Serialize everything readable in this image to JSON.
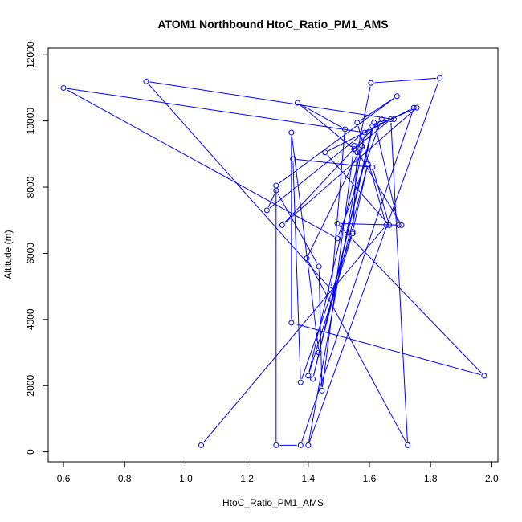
{
  "chart_data": {
    "type": "line",
    "title": "ATOM1 Northbound HtoC_Ratio_PM1_AMS",
    "xlabel": "HtoC_Ratio_PM1_AMS",
    "ylabel": "Altitude (m)",
    "xlim": [
      0.55,
      2.02
    ],
    "ylim": [
      -300,
      12200
    ],
    "x_ticks": [
      0.6,
      0.8,
      1.0,
      1.2,
      1.4,
      1.6,
      1.8,
      2.0
    ],
    "x_tick_labels": [
      "0.6",
      "0.8",
      "1.0",
      "1.2",
      "1.4",
      "1.6",
      "1.8",
      "2.0"
    ],
    "y_ticks": [
      0,
      2000,
      4000,
      6000,
      8000,
      10000,
      12000
    ],
    "y_tick_labels": [
      "0",
      "2000",
      "4000",
      "6000",
      "8000",
      "10000",
      "12000"
    ],
    "grid": false,
    "markers": "open-circle",
    "colors": {
      "series": "#0000ff",
      "axes": "#000000"
    },
    "series": [
      {
        "x": [
          1.05,
          1.655,
          1.56,
          1.69,
          1.295,
          1.295,
          1.375,
          1.745,
          1.455,
          1.665,
          1.61,
          1.35,
          1.375,
          1.545,
          1.595,
          1.435,
          1.345,
          1.345,
          1.975,
          1.495,
          1.705,
          1.55,
          1.445,
          1.435,
          1.295,
          1.265,
          1.61,
          1.415,
          1.615,
          1.68,
          0.87,
          1.475,
          1.52,
          1.365,
          1.55,
          1.67,
          1.725,
          1.395,
          1.575,
          1.4,
          1.545,
          1.56,
          1.605,
          1.83,
          1.4,
          1.585,
          0.6,
          1.495,
          1.64,
          1.315,
          1.755,
          1.62,
          1.695
        ],
        "y": [
          200,
          6850,
          9950,
          10750,
          8050,
          200,
          200,
          10400,
          9050,
          6850,
          8600,
          8850,
          2100,
          6650,
          8700,
          3000,
          9650,
          3900,
          2300,
          6900,
          6850,
          9250,
          1850,
          5600,
          7900,
          7300,
          9850,
          2200,
          9950,
          10050,
          11200,
          4900,
          9750,
          10550,
          9150,
          10050,
          200,
          5850,
          9250,
          2300,
          6600,
          9050,
          11150,
          11300,
          200,
          9650,
          11000,
          6450,
          10050,
          6850,
          10400,
          9850,
          6850
        ]
      }
    ]
  }
}
